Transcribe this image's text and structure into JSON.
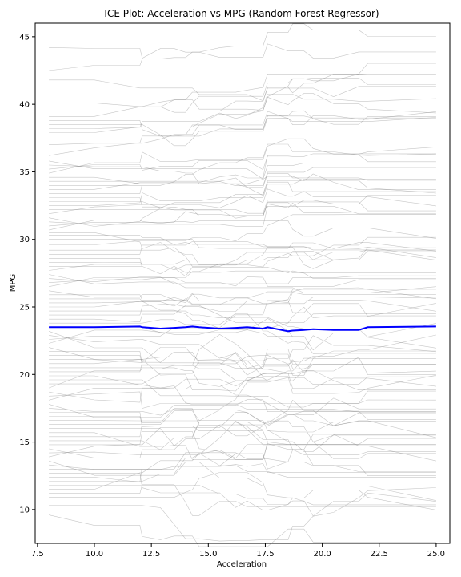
{
  "chart_data": {
    "type": "line",
    "title": "ICE Plot: Acceleration vs MPG (Random Forest Regressor)",
    "xlabel": "Acceleration",
    "ylabel": "MPG",
    "xlim": [
      7.4,
      25.6
    ],
    "ylim": [
      7.5,
      46.0
    ],
    "x_ticks": [
      7.5,
      10.0,
      12.5,
      15.0,
      17.5,
      20.0,
      22.5,
      25.0
    ],
    "x_tick_labels": [
      "7.5",
      "10.0",
      "12.5",
      "15.0",
      "17.5",
      "20.0",
      "22.5",
      "25.0"
    ],
    "y_ticks": [
      10,
      15,
      20,
      25,
      30,
      35,
      40,
      45
    ],
    "y_tick_labels": [
      "10",
      "15",
      "20",
      "25",
      "30",
      "35",
      "40",
      "45"
    ],
    "grid": false,
    "x_grid": [
      8.0,
      10.0,
      12.0,
      12.1,
      12.9,
      13.5,
      14.0,
      14.3,
      14.6,
      15.5,
      16.2,
      16.7,
      17.4,
      17.6,
      18.5,
      18.7,
      19.2,
      19.6,
      20.5,
      21.6,
      22.0,
      25.0
    ],
    "ice_color": "#808080",
    "pdp_color": "#0000ff",
    "ice_baselines": [
      44.2,
      42.5,
      41.8,
      40.1,
      39.8,
      39.5,
      39.1,
      38.8,
      38.5,
      38.2,
      37.9,
      37.0,
      36.2,
      35.8,
      35.5,
      35.2,
      34.9,
      34.6,
      34.3,
      34.0,
      33.7,
      33.4,
      33.1,
      32.8,
      32.5,
      32.2,
      31.9,
      31.6,
      31.3,
      31.0,
      30.7,
      30.5,
      30.3,
      30.0,
      29.6,
      29.2,
      28.9,
      28.6,
      28.3,
      28.0,
      27.7,
      27.4,
      27.1,
      26.8,
      26.5,
      26.2,
      25.9,
      25.6,
      25.3,
      25.0,
      24.7,
      24.4,
      24.1,
      23.8,
      23.5,
      23.2,
      22.9,
      22.6,
      22.3,
      22.0,
      21.7,
      21.4,
      21.1,
      20.8,
      20.5,
      20.2,
      19.9,
      19.6,
      19.3,
      19.0,
      18.7,
      18.4,
      18.1,
      17.8,
      17.5,
      17.2,
      16.9,
      16.6,
      16.3,
      16.0,
      15.7,
      15.4,
      15.1,
      14.8,
      14.5,
      14.2,
      13.9,
      13.6,
      13.3,
      13.0,
      12.7,
      12.4,
      12.1,
      11.8,
      11.5,
      11.2,
      10.9,
      10.3,
      9.6
    ],
    "series": [
      {
        "values": [
          23.5,
          23.5,
          23.55,
          23.5,
          23.4,
          23.45,
          23.5,
          23.55,
          23.5,
          23.4,
          23.45,
          23.5,
          23.4,
          23.5,
          23.2,
          23.25,
          23.3,
          23.35,
          23.3,
          23.3,
          23.5,
          23.55
        ]
      }
    ]
  }
}
